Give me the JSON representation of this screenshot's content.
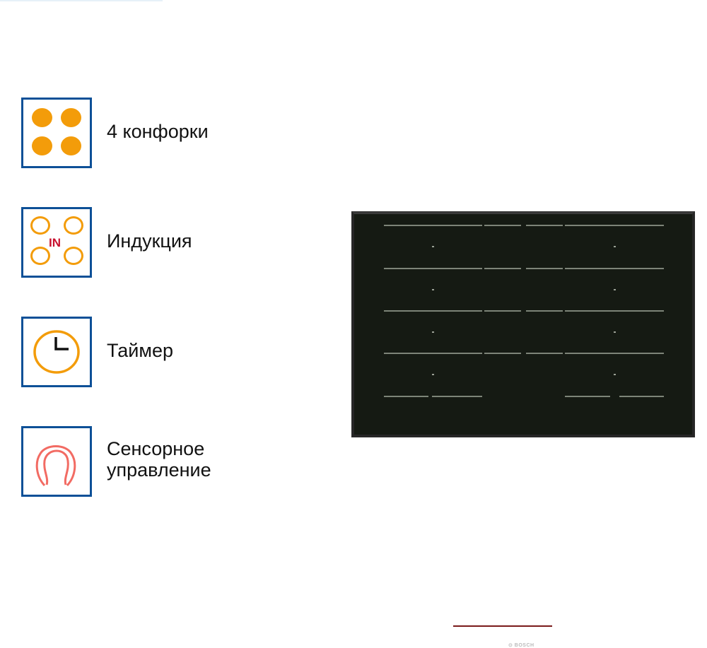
{
  "features": [
    {
      "label": "4 конфорки",
      "icon": "four-burners-icon"
    },
    {
      "label": "Индукция",
      "icon": "induction-icon",
      "icon_text": "IN"
    },
    {
      "label": "Таймер",
      "icon": "timer-icon"
    },
    {
      "label": "Сенсорное управление",
      "icon": "touch-control-icon"
    }
  ],
  "product": {
    "brand_logo": "BOSCH"
  },
  "colors": {
    "border": "#0d5097",
    "accent_orange": "#f39c0a",
    "induction_red": "#c8102e",
    "touch_red": "#f26b63",
    "hob": "#151a13"
  }
}
